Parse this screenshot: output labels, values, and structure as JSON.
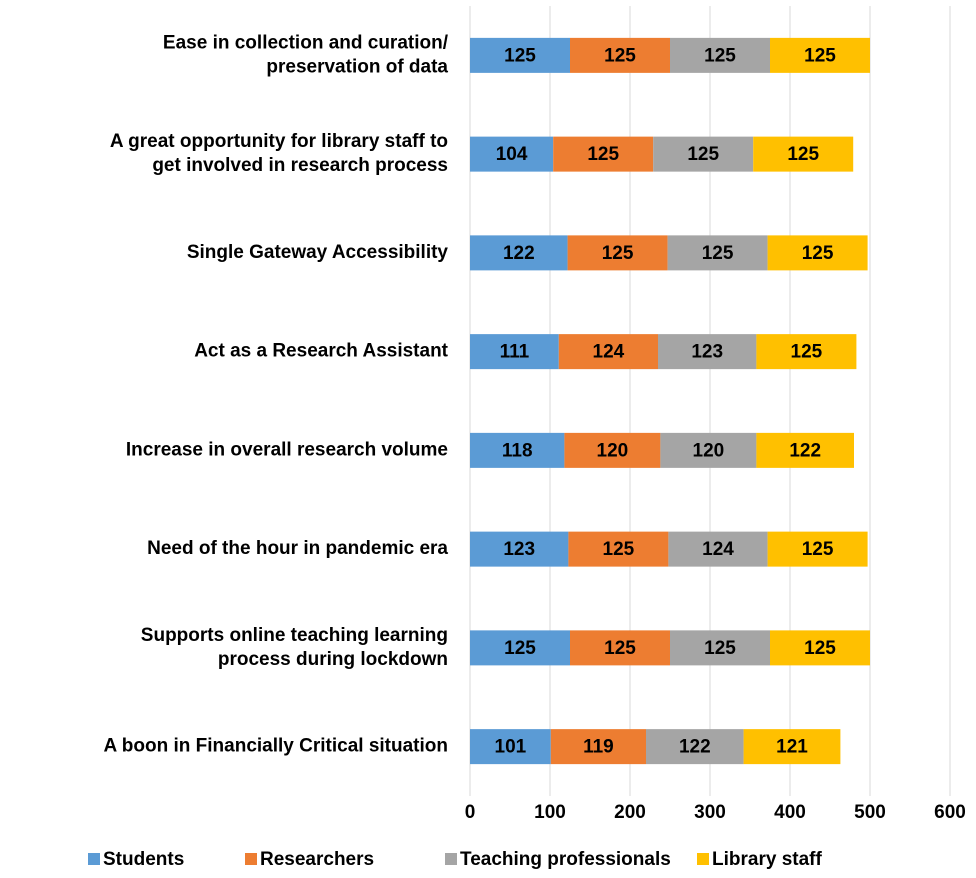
{
  "chart_data": {
    "type": "stacked-barh",
    "categories": [
      [
        "Ease in collection and curation/",
        "preservation of  data"
      ],
      [
        "A great opportunity for library staff to",
        "get involved in research process"
      ],
      [
        "Single Gateway Accessibility"
      ],
      [
        "Act as a Research Assistant"
      ],
      [
        "Increase in overall research volume"
      ],
      [
        "Need of the hour in pandemic era"
      ],
      [
        "Supports online teaching learning",
        "process during lockdown"
      ],
      [
        "A boon in Financially Critical situation"
      ]
    ],
    "series": [
      {
        "name": "Students",
        "color": "#5b9bd5",
        "values": [
          125,
          104,
          122,
          111,
          118,
          123,
          125,
          101
        ]
      },
      {
        "name": "Researchers",
        "color": "#ed7d31",
        "values": [
          125,
          125,
          125,
          124,
          120,
          125,
          125,
          119
        ]
      },
      {
        "name": "Teaching professionals",
        "color": "#a5a5a5",
        "values": [
          125,
          125,
          125,
          123,
          120,
          124,
          125,
          122
        ]
      },
      {
        "name": "Library staff",
        "color": "#ffc000",
        "values": [
          125,
          125,
          125,
          125,
          122,
          125,
          125,
          121
        ]
      }
    ],
    "xlim": [
      0,
      600
    ],
    "xticks": [
      0,
      100,
      200,
      300,
      400,
      500,
      600
    ],
    "grid": true,
    "legend": "bottom"
  }
}
